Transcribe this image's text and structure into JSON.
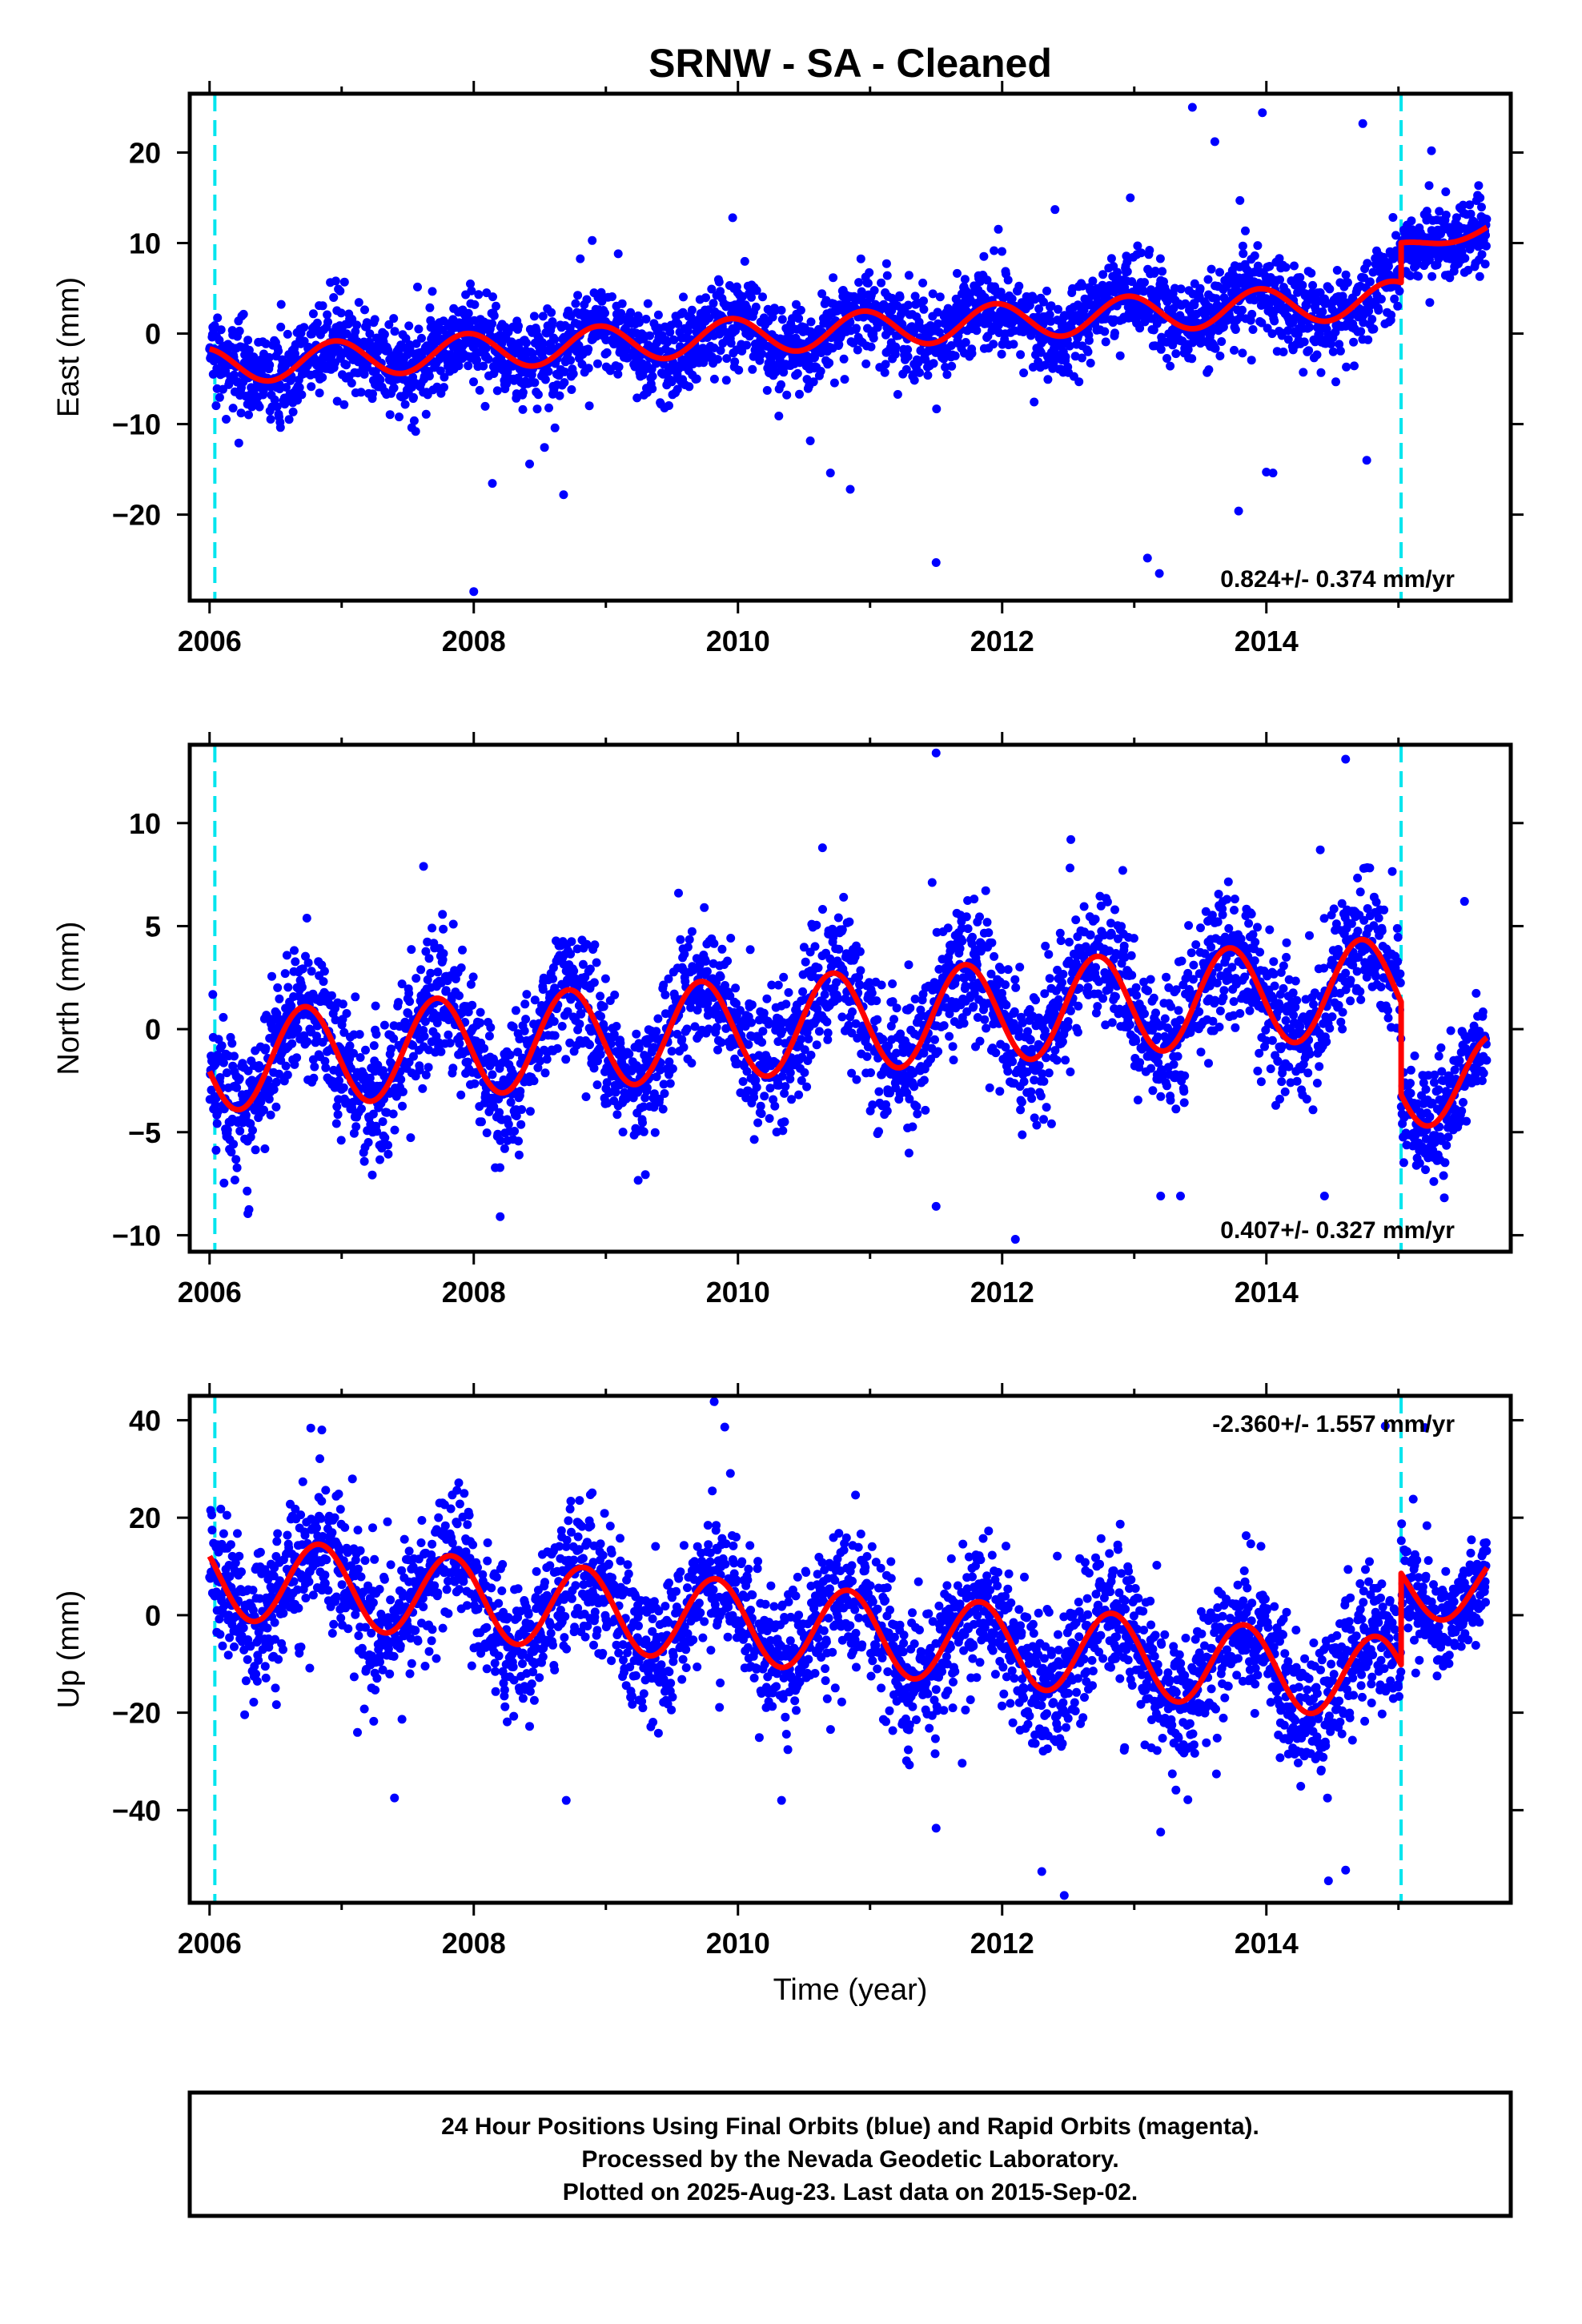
{
  "title": "SRNW  - SA - Cleaned",
  "xlabel": "Time (year)",
  "footer": {
    "line1": "24 Hour Positions Using Final Orbits (blue) and Rapid Orbits (magenta).",
    "line2": "Processed by the Nevada Geodetic Laboratory.",
    "line3": "Plotted on 2025-Aug-23. Last data on 2015-Sep-02."
  },
  "colors": {
    "points": "#0000ff",
    "model": "#ff0000",
    "steps": "#00e5ee",
    "frame": "#000000"
  },
  "chart_data": [
    {
      "type": "scatter",
      "ylabel": "East (mm)",
      "rate_label": "0.824+/- 0.374 mm/yr",
      "rate_position": "bottom-right",
      "xlim": [
        2005.85,
        2015.85
      ],
      "ylim": [
        -29.5,
        26.5
      ],
      "x_ticks": [
        2006,
        2008,
        2010,
        2012,
        2014
      ],
      "y_ticks": [
        -20,
        -10,
        0,
        10,
        20
      ],
      "y_tick_labels": [
        "−20",
        "−10",
        "0",
        "10",
        "20"
      ],
      "step_lines": [
        2006.04,
        2015.02
      ],
      "data_start": 2006.0,
      "data_end": 2015.67,
      "model": {
        "seg1": {
          "t0": 2006.0,
          "t1": 2015.02,
          "offset": -3.6,
          "trend": 0.824,
          "amp": 2.0,
          "phase": 0.7,
          "noise": 2.4
        },
        "seg2": {
          "t0": 2015.02,
          "t1": 2015.67,
          "level": 9.3,
          "trend": 4.0,
          "amp": 0.8,
          "phase": 0.7,
          "noise": 1.8
        }
      },
      "outliers": [
        [
          2013.44,
          25.0
        ],
        [
          2013.61,
          21.2
        ],
        [
          2013.97,
          24.4
        ],
        [
          2014.73,
          23.2
        ],
        [
          2015.25,
          20.2
        ],
        [
          2008.0,
          -28.5
        ],
        [
          2008.68,
          -17.8
        ],
        [
          2010.7,
          -15.4
        ],
        [
          2010.85,
          -17.2
        ],
        [
          2011.5,
          -25.3
        ],
        [
          2013.1,
          -24.8
        ],
        [
          2013.19,
          -26.5
        ],
        [
          2013.79,
          -19.6
        ],
        [
          2014.0,
          -15.3
        ],
        [
          2014.05,
          -15.4
        ],
        [
          2014.76,
          -14.0
        ],
        [
          2009.96,
          12.8
        ],
        [
          2012.4,
          13.7
        ],
        [
          2012.97,
          15.0
        ],
        [
          2013.8,
          14.7
        ]
      ]
    },
    {
      "type": "scatter",
      "ylabel": "North (mm)",
      "rate_label": "0.407+/- 0.327 mm/yr",
      "rate_position": "bottom-right",
      "xlim": [
        2005.85,
        2015.85
      ],
      "ylim": [
        -10.8,
        13.8
      ],
      "x_ticks": [
        2006,
        2008,
        2010,
        2012,
        2014
      ],
      "y_ticks": [
        -10,
        -5,
        0,
        5,
        10
      ],
      "y_tick_labels": [
        "−10",
        "−5",
        "0",
        "5",
        "10"
      ],
      "step_lines": [
        2006.04,
        2015.02
      ],
      "data_start": 2006.0,
      "data_end": 2015.67,
      "model": {
        "seg1": {
          "t0": 2006.0,
          "t1": 2015.02,
          "offset": -1.6,
          "trend": 0.407,
          "amp": 2.4,
          "phase": 0.47,
          "noise": 1.6
        },
        "seg2": {
          "t0": 2015.02,
          "t1": 2015.67,
          "level": -2.5,
          "trend": 0.0,
          "amp": 2.2,
          "phase": 0.47,
          "noise": 1.3
        }
      },
      "outliers": [
        [
          2011.5,
          13.4
        ],
        [
          2014.6,
          13.1
        ],
        [
          2010.64,
          8.8
        ],
        [
          2012.52,
          9.2
        ],
        [
          2007.62,
          7.9
        ],
        [
          2012.1,
          -10.2
        ],
        [
          2008.2,
          -9.1
        ],
        [
          2013.2,
          -8.1
        ],
        [
          2013.35,
          -8.1
        ],
        [
          2011.5,
          -8.6
        ],
        [
          2014.44,
          -8.1
        ],
        [
          2015.5,
          6.2
        ],
        [
          2009.55,
          6.6
        ]
      ]
    },
    {
      "type": "scatter",
      "ylabel": "Up (mm)",
      "rate_label": "-2.360+/- 1.557 mm/yr",
      "rate_position": "top-right",
      "xlim": [
        2005.85,
        2015.85
      ],
      "ylim": [
        -59,
        45
      ],
      "x_ticks": [
        2006,
        2008,
        2010,
        2012,
        2014
      ],
      "y_ticks": [
        -40,
        -20,
        0,
        20,
        40
      ],
      "y_tick_labels": [
        "−40",
        "−20",
        "0",
        "20",
        "40"
      ],
      "step_lines": [
        2006.04,
        2015.02
      ],
      "data_start": 2006.0,
      "data_end": 2015.67,
      "model": {
        "seg1": {
          "t0": 2006.0,
          "t1": 2015.02,
          "offset": 8.0,
          "trend": -2.36,
          "amp": 8.5,
          "phase": 0.58,
          "noise": 7.0
        },
        "seg2": {
          "t0": 2015.02,
          "t1": 2015.67,
          "level": 6.0,
          "trend": 0.0,
          "amp": 7.0,
          "phase": 0.58,
          "noise": 5.0
        }
      },
      "outliers": [
        [
          2009.82,
          43.8
        ],
        [
          2009.9,
          38.6
        ],
        [
          2006.85,
          38.0
        ],
        [
          2012.3,
          -52.6
        ],
        [
          2012.47,
          -57.5
        ],
        [
          2014.47,
          -54.5
        ],
        [
          2014.6,
          -52.3
        ],
        [
          2007.4,
          -37.5
        ],
        [
          2008.7,
          -38.0
        ],
        [
          2010.33,
          -38.0
        ],
        [
          2013.2,
          -44.5
        ],
        [
          2011.5,
          -43.7
        ],
        [
          2014.9,
          38.8
        ],
        [
          2015.2,
          38.5
        ]
      ]
    }
  ]
}
